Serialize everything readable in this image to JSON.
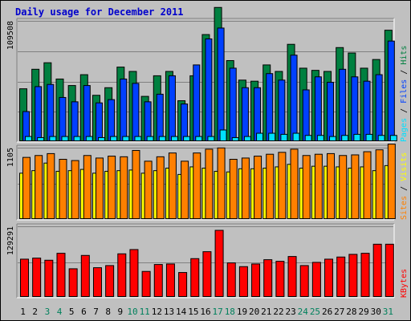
{
  "title": "Daily usage for December 2011",
  "colors": {
    "hits": "#008040",
    "files": "#0040ff",
    "pages": "#00e0ff",
    "visits": "#ffff00",
    "sites": "#ff8000",
    "kbytes": "#ff0000",
    "weekend_day": "#00805c",
    "weekday_day": "#000000"
  },
  "chart_data": {
    "type": "bar",
    "categories": [
      "1",
      "2",
      "3",
      "4",
      "5",
      "6",
      "7",
      "8",
      "9",
      "10",
      "11",
      "12",
      "13",
      "14",
      "15",
      "16",
      "17",
      "18",
      "19",
      "20",
      "21",
      "22",
      "23",
      "24",
      "25",
      "26",
      "27",
      "28",
      "29",
      "30",
      "31"
    ],
    "weekend_days": [
      "3",
      "4",
      "10",
      "11",
      "17",
      "18",
      "24",
      "25",
      "31"
    ],
    "panels": [
      {
        "name": "hits-files-pages",
        "ymax_label": "109508",
        "ymax": 109508,
        "legend": [
          "Pages",
          "Files",
          "Hits"
        ],
        "series": [
          {
            "name": "Hits",
            "values": [
              48000,
              66000,
              72000,
              57000,
              51000,
              61000,
              42000,
              49000,
              68000,
              64000,
              41000,
              60000,
              64000,
              37000,
              60000,
              98000,
              123000,
              74000,
              56000,
              55000,
              70000,
              64000,
              89000,
              67000,
              65000,
              64000,
              86000,
              81000,
              67000,
              75000,
              102000
            ]
          },
          {
            "name": "Files",
            "values": [
              27000,
              50000,
              52000,
              40000,
              36000,
              51000,
              35000,
              38000,
              57000,
              53000,
              36000,
              43000,
              60000,
              34000,
              70000,
              94000,
              104000,
              67000,
              49000,
              49000,
              62000,
              56000,
              79000,
              47000,
              59000,
              54000,
              66000,
              59000,
              55000,
              61000,
              92000
            ]
          },
          {
            "name": "Pages",
            "values": [
              4000,
              3000,
              4000,
              4000,
              4000,
              4000,
              3000,
              4000,
              4000,
              4000,
              4000,
              4000,
              4000,
              4000,
              4000,
              4000,
              10000,
              3000,
              4000,
              7000,
              7000,
              6000,
              7000,
              5000,
              5000,
              4000,
              5000,
              6000,
              6000,
              5000,
              5000
            ]
          }
        ]
      },
      {
        "name": "visits-sites",
        "ymax_label": "1105",
        "ymax": 1105,
        "legend": [
          "Sites",
          "Visits"
        ],
        "series": [
          {
            "name": "Visits",
            "values": [
              720,
              760,
              880,
              750,
              760,
              780,
              720,
              750,
              760,
              770,
              720,
              760,
              800,
              700,
              820,
              800,
              750,
              740,
              790,
              790,
              800,
              820,
              860,
              800,
              830,
              830,
              820,
              800,
              820,
              760,
              840
            ]
          },
          {
            "name": "Sites",
            "values": [
              970,
              1000,
              1030,
              940,
              920,
              1000,
              960,
              990,
              980,
              1080,
              910,
              980,
              1040,
              910,
              1040,
              1100,
              1120,
              940,
              960,
              990,
              1020,
              1050,
              1100,
              1000,
              1020,
              1030,
              1000,
              1010,
              1060,
              1090,
              1180
            ]
          }
        ]
      },
      {
        "name": "kbytes",
        "ymax_label": "129291",
        "ymax": 129291,
        "legend": [
          "KBytes"
        ],
        "series": [
          {
            "name": "KBytes",
            "values": [
              70000,
              72000,
              68000,
              81000,
              52000,
              77000,
              54000,
              58000,
              80000,
              88000,
              47000,
              60000,
              61000,
              45000,
              71000,
              84000,
              124000,
              63000,
              56000,
              61000,
              69000,
              66000,
              75000,
              58000,
              64000,
              70000,
              74000,
              79000,
              81000,
              98000,
              98000
            ]
          }
        ]
      }
    ]
  }
}
